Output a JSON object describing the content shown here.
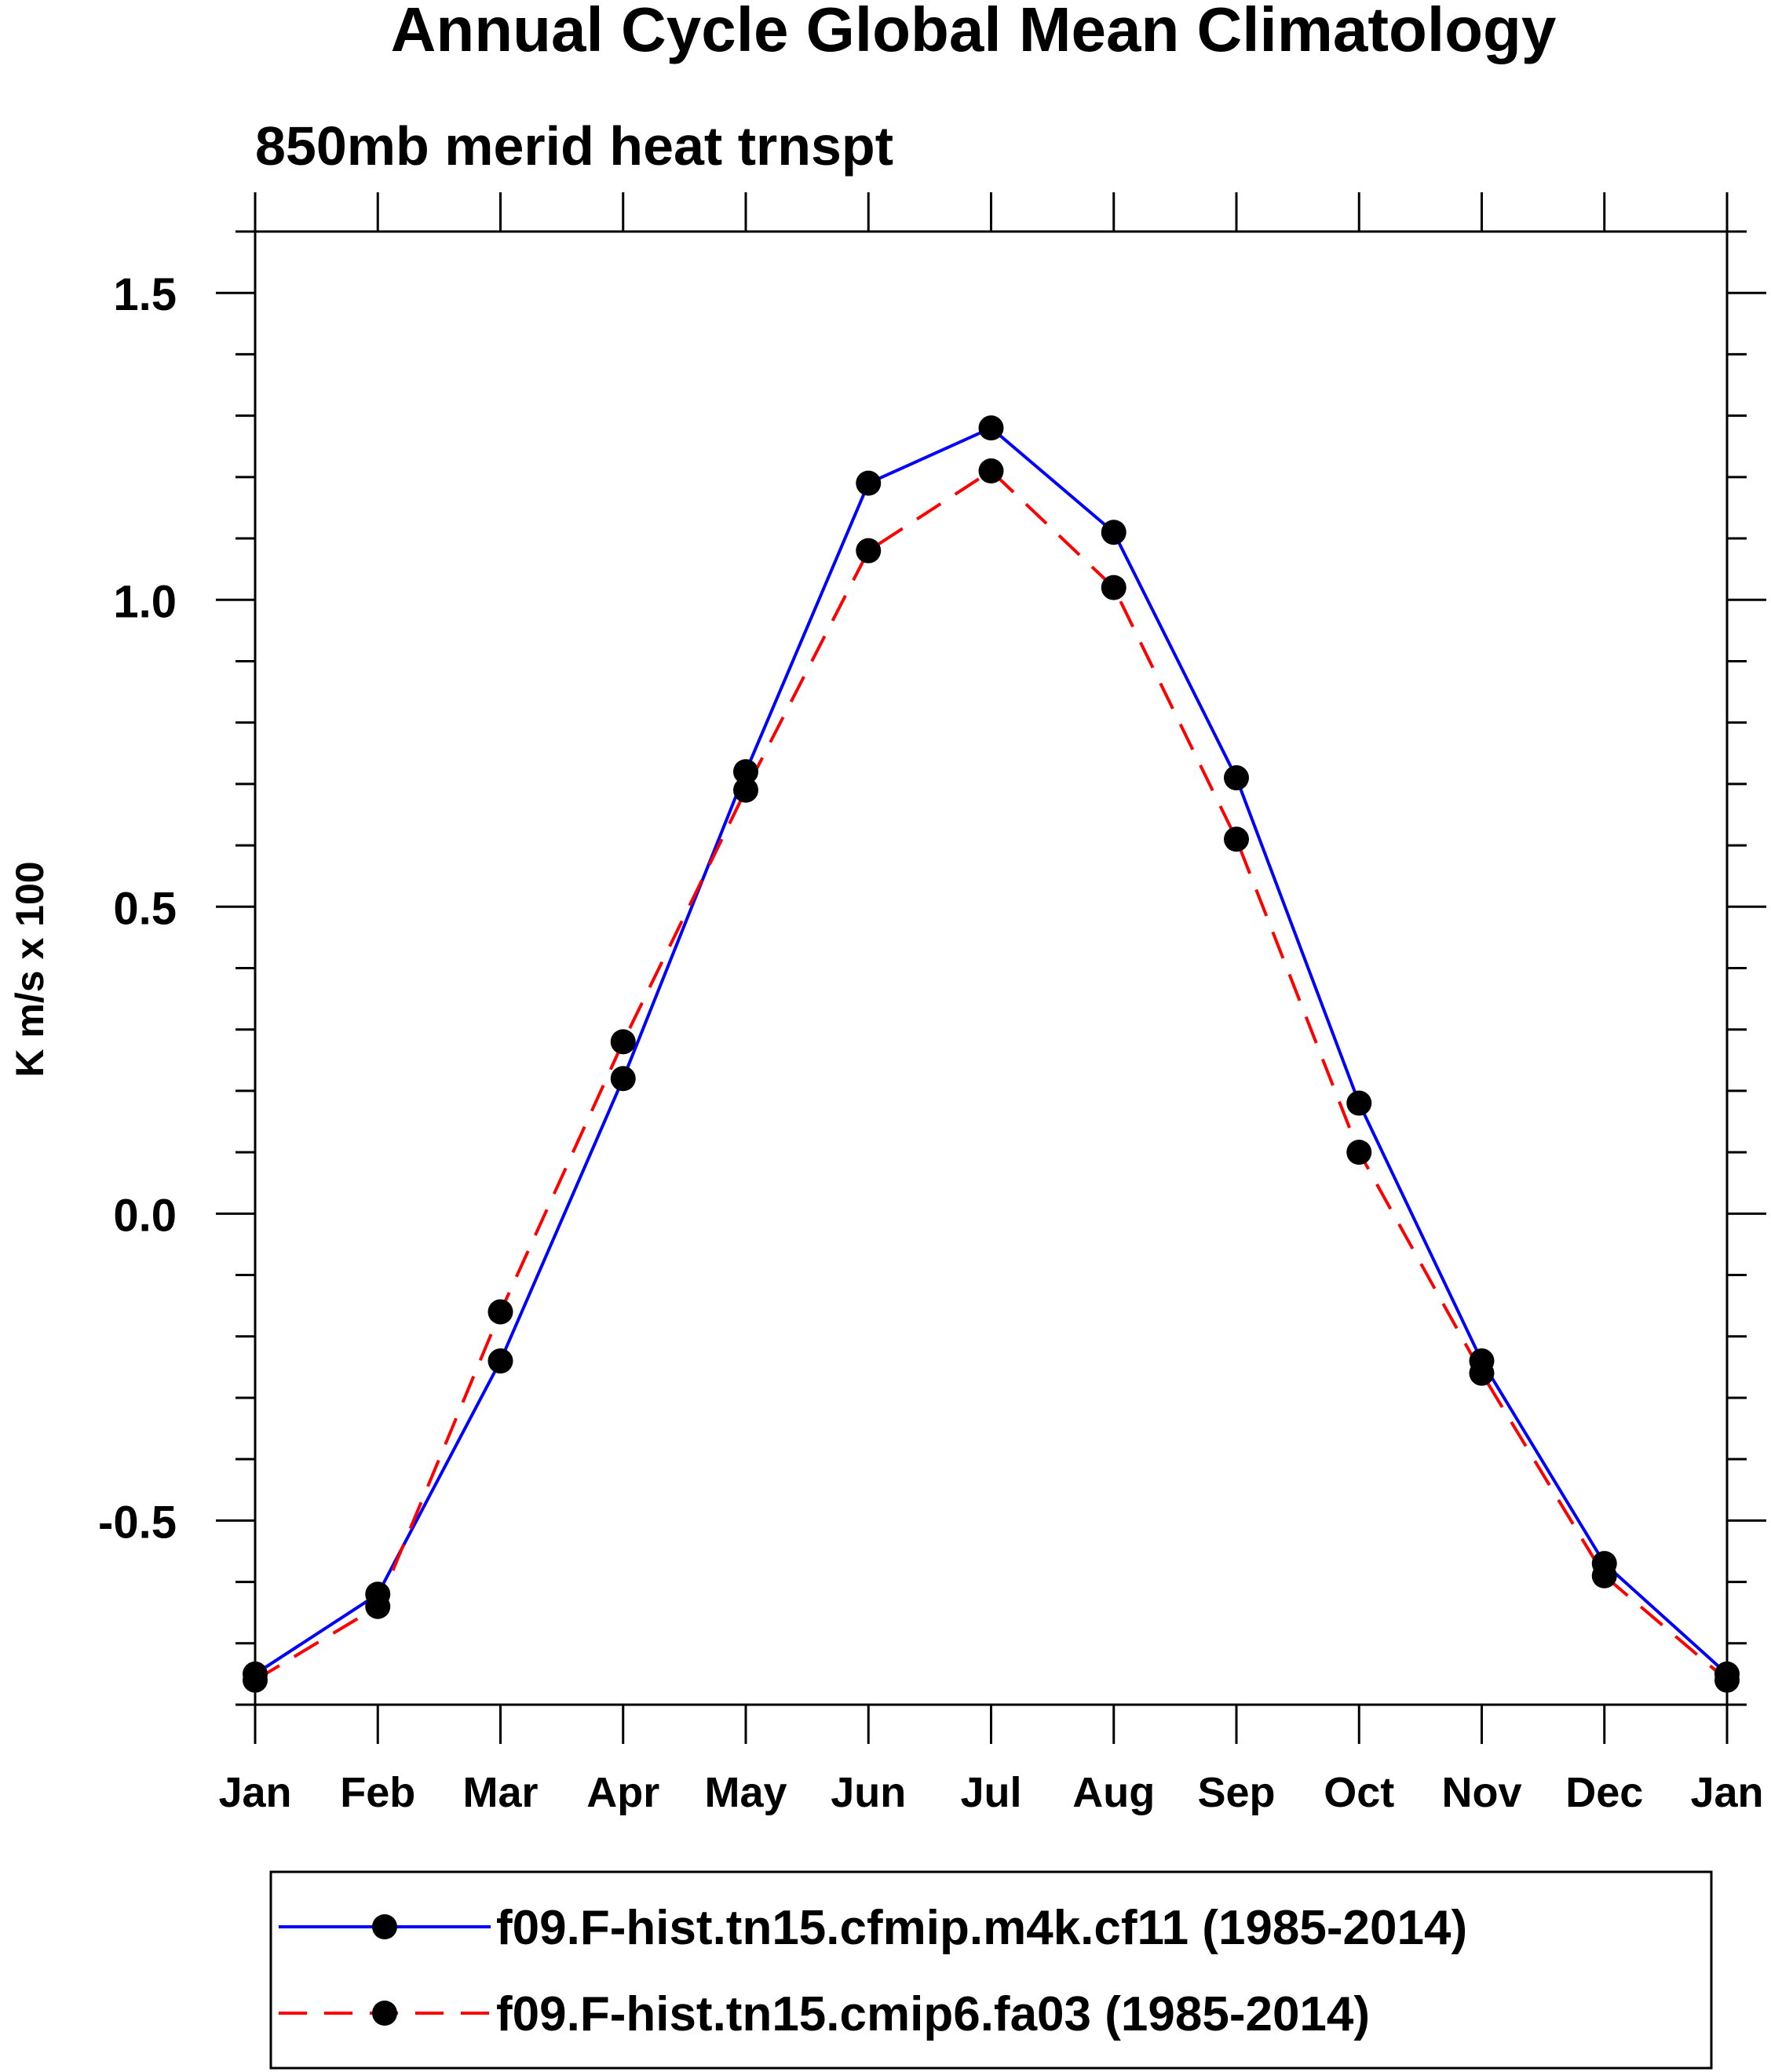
{
  "chart_data": {
    "type": "line",
    "title": "Annual Cycle Global Mean Climatology",
    "subtitle": "850mb merid heat trnspt",
    "xlabel": "",
    "ylabel": "K m/s x 100",
    "categories": [
      "Jan",
      "Feb",
      "Mar",
      "Apr",
      "May",
      "Jun",
      "Jul",
      "Aug",
      "Sep",
      "Oct",
      "Nov",
      "Dec",
      "Jan"
    ],
    "ylim": [
      -0.8,
      1.6
    ],
    "yticks": [
      "1.5",
      "1.0",
      "0.5",
      "0.0",
      "-0.5"
    ],
    "ytick_values": [
      1.5,
      1.0,
      0.5,
      0.0,
      -0.5
    ],
    "minor_step": 0.1,
    "grid": false,
    "legend_position": "bottom",
    "series": [
      {
        "name": "f09.F-hist.tn15.cfmip.m4k.cf11 (1985-2014)",
        "color": "#0000ff",
        "line_style": "solid",
        "marker": "filled-circle",
        "values": [
          -0.75,
          -0.62,
          -0.24,
          0.22,
          0.72,
          1.19,
          1.28,
          1.11,
          0.71,
          0.18,
          -0.24,
          -0.57,
          -0.75
        ]
      },
      {
        "name": "f09.F-hist.tn15.cmip6.fa03 (1985-2014)",
        "color": "#ff0000",
        "line_style": "dashed",
        "marker": "filled-circle",
        "values": [
          -0.76,
          -0.64,
          -0.16,
          0.28,
          0.69,
          1.08,
          1.21,
          1.02,
          0.61,
          0.1,
          -0.26,
          -0.59,
          -0.76
        ]
      }
    ]
  }
}
